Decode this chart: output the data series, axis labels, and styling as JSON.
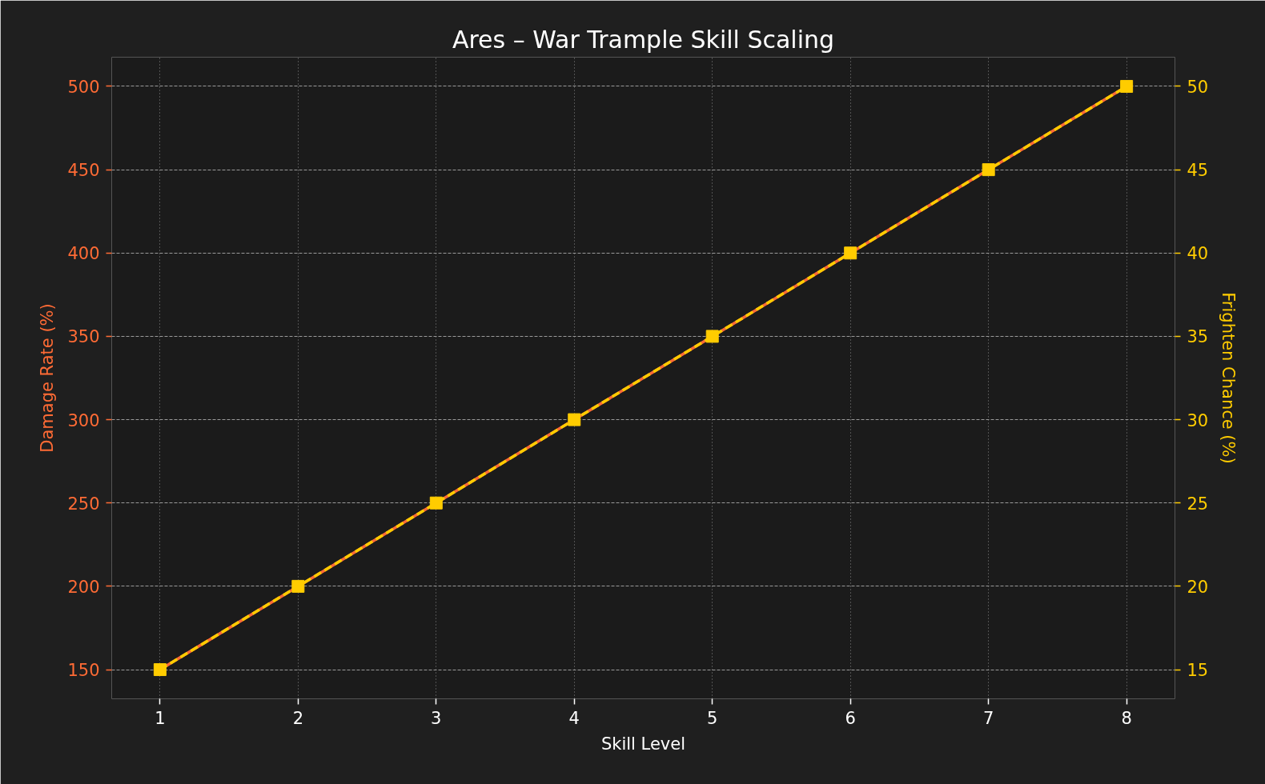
{
  "chart_data": {
    "type": "line",
    "title": "Ares – War Trample Skill Scaling",
    "xlabel": "Skill Level",
    "ylabel": "Damage Rate (%)",
    "y2label": "Frighten Chance (%)",
    "x": [
      1,
      2,
      3,
      4,
      5,
      6,
      7,
      8
    ],
    "series": [
      {
        "color": "#ff6b35",
        "values": [
          150,
          200,
          250,
          300,
          350,
          400,
          450,
          500
        ],
        "line_style": "solid",
        "marker": "none"
      },
      {
        "color": "#ffcc00",
        "values": [
          15,
          20,
          25,
          30,
          35,
          40,
          45,
          50
        ],
        "axis": "y2",
        "line_style": "dashed",
        "marker": "square"
      }
    ],
    "xlim": [
      0.65,
      8.35
    ],
    "xticks": [
      1,
      2,
      3,
      4,
      5,
      6,
      7,
      8
    ],
    "ylim": [
      132.5,
      517.5
    ],
    "yticks": [
      150,
      200,
      250,
      300,
      350,
      400,
      450,
      500
    ],
    "y2lim": [
      13.25,
      51.75
    ],
    "y2ticks": [
      15,
      20,
      25,
      30,
      35,
      40,
      45,
      50
    ],
    "grid": true
  }
}
